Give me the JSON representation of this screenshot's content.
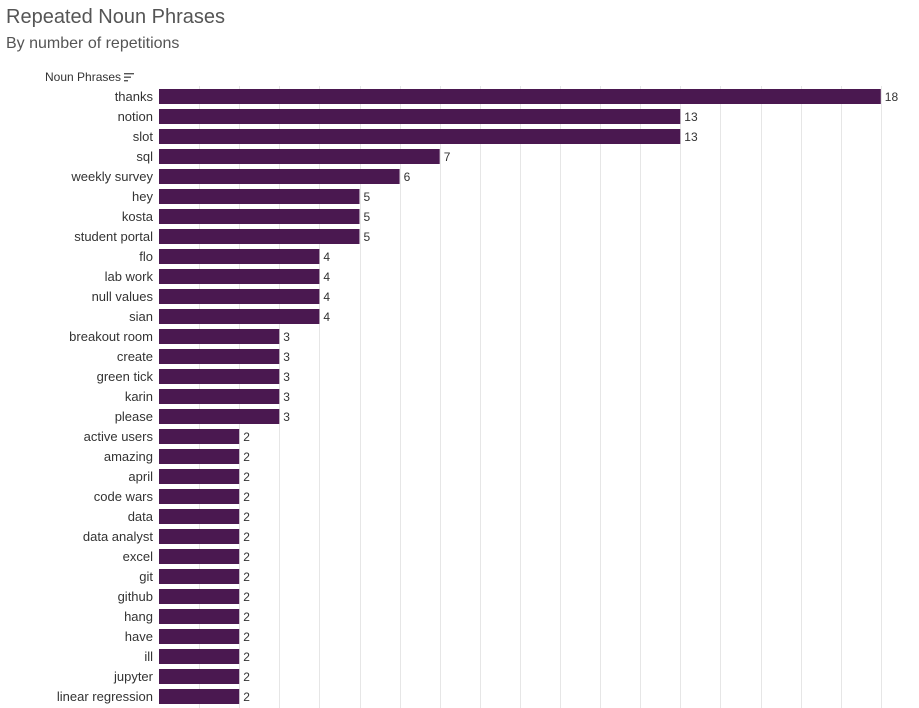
{
  "header": {
    "title": "Repeated Noun Phrases",
    "subtitle": "By number of repetitions",
    "field_label": "Noun Phrases"
  },
  "colors": {
    "bar": "#4a1850",
    "grid": "#e6e6e6"
  },
  "icons": {
    "sort": "sort-descending-icon"
  },
  "chart_data": {
    "type": "bar",
    "orientation": "horizontal",
    "title": "Repeated Noun Phrases",
    "subtitle": "By number of repetitions",
    "ylabel": "Noun Phrases",
    "xlabel": "",
    "xlim": [
      0,
      18
    ],
    "grid": "vertical",
    "categories": [
      "thanks",
      "notion",
      "slot",
      "sql",
      "weekly survey",
      "hey",
      "kosta",
      "student portal",
      "flo",
      "lab work",
      "null values",
      "sian",
      "breakout room",
      "create",
      "green tick",
      "karin",
      "please",
      "active users",
      "amazing",
      "april",
      "code wars",
      "data",
      "data analyst",
      "excel",
      "git",
      "github",
      "hang",
      "have",
      "ill",
      "jupyter",
      "linear regression"
    ],
    "values": [
      18,
      13,
      13,
      7,
      6,
      5,
      5,
      5,
      4,
      4,
      4,
      4,
      3,
      3,
      3,
      3,
      3,
      2,
      2,
      2,
      2,
      2,
      2,
      2,
      2,
      2,
      2,
      2,
      2,
      2,
      2
    ]
  }
}
